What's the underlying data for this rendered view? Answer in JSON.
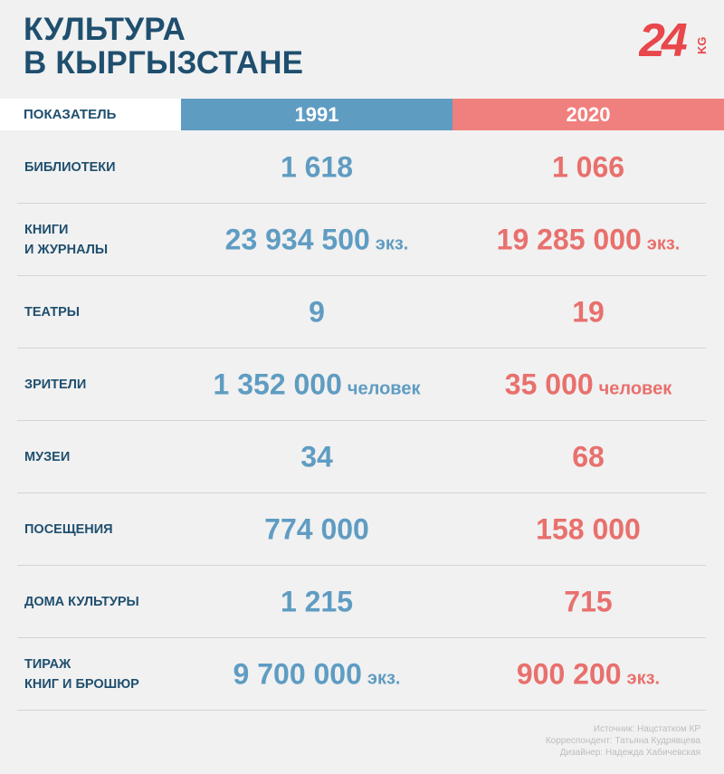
{
  "title": {
    "line1": "КУЛЬТУРА",
    "line2": "В КЫРГЫЗСТАНЕ"
  },
  "logo": {
    "number": "24",
    "suffix": "KG",
    "color": "#e8474b"
  },
  "header": {
    "indicator": "ПОКАЗАТЕЛЬ",
    "year_a": "1991",
    "year_b": "2020"
  },
  "colors": {
    "blue": "#5f9cc2",
    "red": "#f0807d",
    "navy": "#1f4f6e"
  },
  "rows": [
    {
      "label": [
        "БИБЛИОТЕКИ"
      ],
      "v1991": "1 618",
      "u1991": "",
      "v2020": "1 066",
      "u2020": ""
    },
    {
      "label": [
        "КНИГИ",
        "И ЖУРНАЛЫ"
      ],
      "v1991": "23 934 500",
      "u1991": "экз.",
      "v2020": "19 285 000",
      "u2020": "экз."
    },
    {
      "label": [
        "ТЕАТРЫ"
      ],
      "v1991": "9",
      "u1991": "",
      "v2020": "19",
      "u2020": ""
    },
    {
      "label": [
        "ЗРИТЕЛИ"
      ],
      "v1991": "1 352 000",
      "u1991": "человек",
      "v2020": "35 000",
      "u2020": "человек"
    },
    {
      "label": [
        "МУЗЕИ"
      ],
      "v1991": "34",
      "u1991": "",
      "v2020": "68",
      "u2020": ""
    },
    {
      "label": [
        "ПОСЕЩЕНИЯ"
      ],
      "v1991": "774 000",
      "u1991": "",
      "v2020": "158 000",
      "u2020": ""
    },
    {
      "label": [
        "ДОМА КУЛЬТУРЫ"
      ],
      "v1991": "1 215",
      "u1991": "",
      "v2020": "715",
      "u2020": ""
    },
    {
      "label": [
        "ТИРАЖ",
        "КНИГ И БРОШЮР"
      ],
      "v1991": "9 700 000",
      "u1991": "экз.",
      "v2020": "900 200",
      "u2020": "экз."
    }
  ],
  "credits": {
    "source": "Источник: Нацстатком КР",
    "correspondent": "Корреспондент: Татьяна Кудрявцева",
    "designer": "Дизайнер: Надежда Хабичевская"
  }
}
